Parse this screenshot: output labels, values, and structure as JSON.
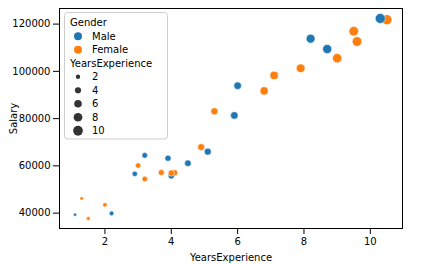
{
  "chart_data": {
    "type": "scatter",
    "xlabel": "YearsExperience",
    "ylabel": "Salary",
    "xlim": [
      0.63,
      10.97
    ],
    "xticks": [
      2,
      4,
      6,
      8,
      10
    ],
    "ylim": [
      33500,
      126600
    ],
    "yticks": [
      40000,
      60000,
      80000,
      100000,
      120000
    ],
    "grid": false,
    "legend": "upper left",
    "marker": "circle",
    "legend_title": "Gender",
    "size_legend": {
      "title": "YearsExperience",
      "values": [
        2,
        4,
        6,
        8,
        10
      ]
    },
    "series": [
      {
        "name": "Male",
        "color": "#1f77b4",
        "x": [
          1.1,
          2.2,
          2.9,
          3.2,
          3.9,
          4.0,
          4.5,
          5.1,
          5.9,
          6.0,
          8.2,
          8.7,
          10.3
        ],
        "values": [
          39343,
          39891,
          56642,
          64445,
          63218,
          55794,
          61111,
          66029,
          81363,
          93940,
          113812,
          109431,
          122391
        ]
      },
      {
        "name": "Female",
        "color": "#ff7f0e",
        "x": [
          1.3,
          1.5,
          2.0,
          3.0,
          3.2,
          3.7,
          4.0,
          4.1,
          4.9,
          5.3,
          6.8,
          7.1,
          7.9,
          9.0,
          9.5,
          9.6,
          10.5
        ],
        "values": [
          46205,
          37731,
          43525,
          60150,
          54445,
          57189,
          56957,
          57081,
          67938,
          83088,
          91738,
          98273,
          101302,
          105582,
          116969,
          112635,
          121872
        ]
      }
    ]
  }
}
